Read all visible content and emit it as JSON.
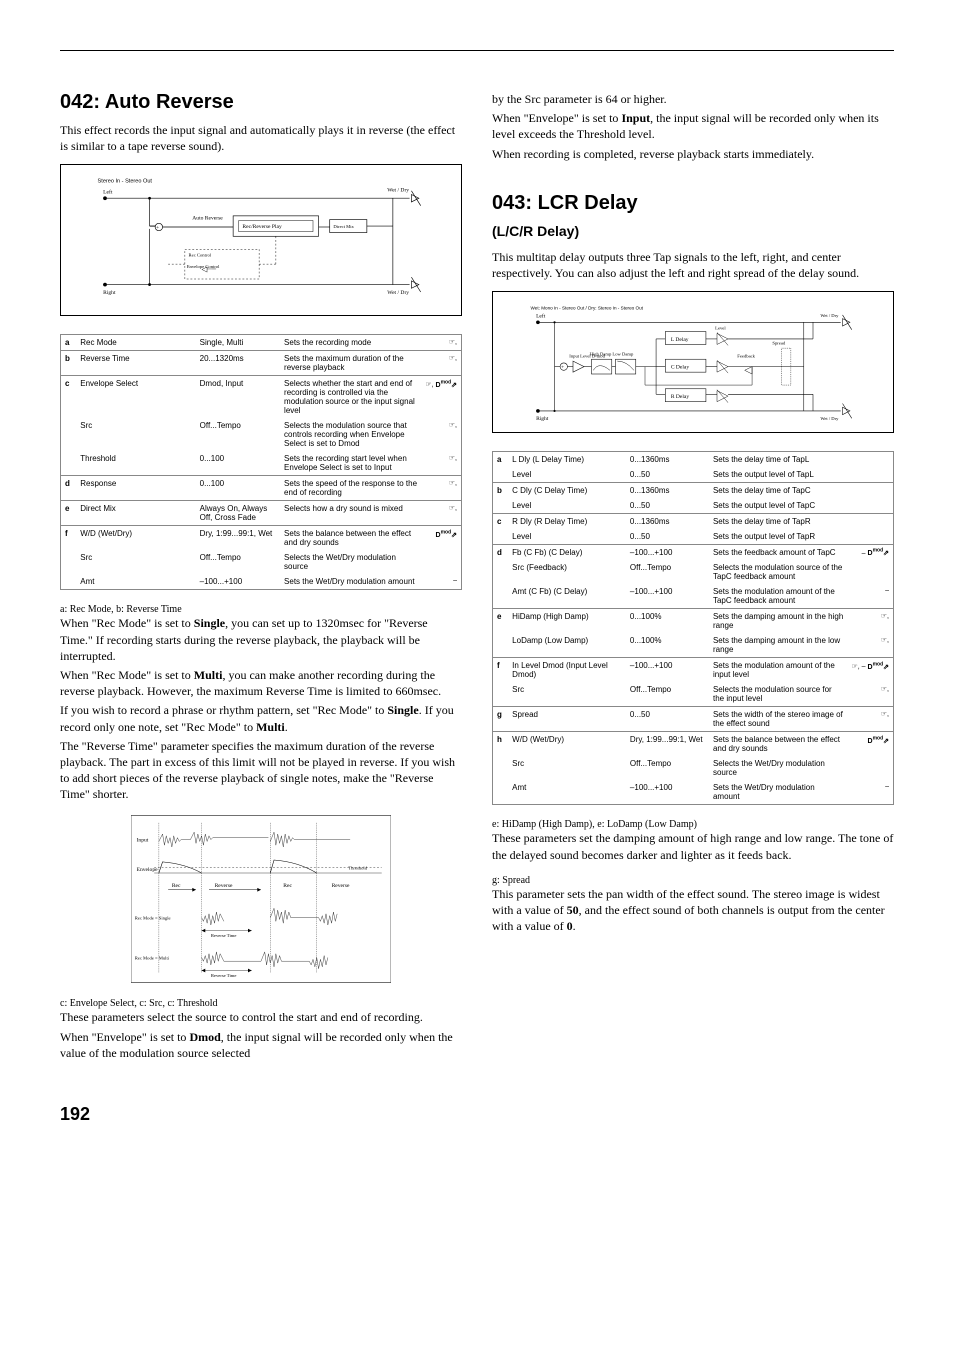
{
  "page_number": "192",
  "left": {
    "section_title": "042: Auto Reverse",
    "intro": "This effect records the input signal and automatically plays it in reverse (the effect is similar to a tape reverse sound).",
    "diagram": {
      "title": "Stereo In - Stereo Out",
      "labels": [
        "Left",
        "Right",
        "Wet / Dry",
        "Wet / Dry",
        "Rec/Reverse Play",
        "Rec Control",
        "Auto Reverse",
        "Envelope Control",
        "Direct Mix"
      ]
    },
    "params": [
      {
        "letter": "a",
        "rows": [
          {
            "name": "Rec Mode",
            "range": "Single, Multi",
            "desc": "Sets the recording mode",
            "icon": "☞,"
          }
        ]
      },
      {
        "letter": "b",
        "rows": [
          {
            "name": "Reverse Time",
            "range": "20...1320ms",
            "desc": "Sets the maximum duration of the reverse playback",
            "icon": "☞,"
          }
        ]
      },
      {
        "letter": "c",
        "rows": [
          {
            "name": "Envelope Select",
            "range": "Dmod, Input",
            "desc": "Selects whether the start and end of recording is controlled via the modulation source or the input signal level",
            "icon": "☞, D-mod"
          },
          {
            "name": "Src",
            "range": "Off...Tempo",
            "desc": "Selects the modulation source that controls recording when Envelope Select is set to Dmod",
            "icon": "☞,"
          },
          {
            "name": "Threshold",
            "range": "0...100",
            "desc": "Sets the recording start level when Envelope Select is set to Input",
            "icon": "☞,"
          }
        ]
      },
      {
        "letter": "d",
        "rows": [
          {
            "name": "Response",
            "range": "0...100",
            "desc": "Sets the speed of the response to the end of recording",
            "icon": "☞,"
          }
        ]
      },
      {
        "letter": "e",
        "rows": [
          {
            "name": "Direct Mix",
            "range": "Always On, Always Off, Cross Fade",
            "desc": "Selects how a dry sound is mixed",
            "icon": "☞,"
          }
        ]
      },
      {
        "letter": "f",
        "rows": [
          {
            "name": "W/D (Wet/Dry)",
            "range": "Dry, 1:99...99:1, Wet",
            "desc": "Sets the balance between the effect and dry sounds",
            "icon": "D-mod"
          },
          {
            "name": "Src",
            "range": "Off...Tempo",
            "desc": "Selects the Wet/Dry modulation source",
            "icon": ""
          },
          {
            "name": "Amt",
            "range": "–100...+100",
            "desc": "Sets the Wet/Dry modulation amount",
            "icon": "–"
          }
        ]
      }
    ],
    "note_a_title": "a: Rec Mode, b: Reverse Time",
    "note_a_p1a": "When \"Rec Mode\" is set to ",
    "note_a_p1b": "Single",
    "note_a_p1c": ", you can set up to 1320msec for \"Reverse Time.\" If recording starts during the reverse playback, the playback will be interrupted.",
    "note_a_p2a": "When \"Rec Mode\" is set to ",
    "note_a_p2b": "Multi",
    "note_a_p2c": ", you can make another recording during the reverse playback. However, the maximum Reverse Time is limited to 660msec.",
    "note_a_p3a": "If you wish to record a phrase or rhythm pattern, set \"Rec Mode\" to ",
    "note_a_p3b": "Single",
    "note_a_p3c": ". If you record only one note, set \"Rec Mode\" to ",
    "note_a_p3d": "Multi",
    "note_a_p3e": ".",
    "note_a_p4": "The \"Reverse Time\" parameter specifies the maximum duration of the reverse playback. The part in excess of this limit will not be played in reverse. If you wish to add short pieces of the reverse playback of single notes, make the \"Reverse Time\" shorter.",
    "env_diagram": {
      "labels": [
        "Rec Mode = Single",
        "Rec Mode = Multi",
        "Envelope",
        "Threshold",
        "Input",
        "Reverse Time",
        "Rec",
        "Reverse"
      ]
    },
    "note_c_title": "c: Envelope Select, c: Src, c: Threshold",
    "note_c_p1": "These parameters select the source to control the start and end of recording.",
    "note_c_p2a": "When \"Envelope\" is set to ",
    "note_c_p2b": "Dmod",
    "note_c_p2c": ", the input signal will be recorded only when the value of the modulation source selected"
  },
  "right": {
    "cont_p1": "by the Src parameter is 64 or higher.",
    "cont_p2a": "When \"Envelope\" is set to ",
    "cont_p2b": "Input",
    "cont_p2c": ", the input signal will be recorded only when its level exceeds the Threshold level.",
    "cont_p3": "When recording is completed, reverse playback starts immediately.",
    "section_title": "043: LCR Delay",
    "subtitle": "(L/C/R Delay)",
    "intro": "This multitap delay outputs three Tap signals to the left, right, and center respectively. You can also adjust the left and right spread of the delay sound.",
    "diagram": {
      "title": "Wet: Mono In - Stereo Out / Dry: Stereo In - Stereo Out",
      "labels": [
        "Left",
        "Right",
        "Wet / Dry",
        "Input Level D-mod",
        "High Damp",
        "Low Damp",
        "L Delay",
        "C Delay",
        "R Delay",
        "Feedback",
        "Spread",
        "Level"
      ]
    },
    "params": [
      {
        "letter": "a",
        "rows": [
          {
            "name": "L Dly (L Delay Time)",
            "range": "0...1360ms",
            "desc": "Sets the delay time of TapL",
            "icon": ""
          },
          {
            "name": "Level",
            "range": "0...50",
            "desc": "Sets the output level of TapL",
            "icon": ""
          }
        ]
      },
      {
        "letter": "b",
        "rows": [
          {
            "name": "C Dly (C Delay Time)",
            "range": "0...1360ms",
            "desc": "Sets the delay time of TapC",
            "icon": ""
          },
          {
            "name": "Level",
            "range": "0...50",
            "desc": "Sets the output level of TapC",
            "icon": ""
          }
        ]
      },
      {
        "letter": "c",
        "rows": [
          {
            "name": "R Dly (R Delay Time)",
            "range": "0...1360ms",
            "desc": "Sets the delay time of TapR",
            "icon": ""
          },
          {
            "name": "Level",
            "range": "0...50",
            "desc": "Sets the output level of TapR",
            "icon": ""
          }
        ]
      },
      {
        "letter": "d",
        "rows": [
          {
            "name": "Fb (C Fb) (C Delay)",
            "range": "–100...+100",
            "desc": "Sets the feedback amount of TapC",
            "icon": "– D-mod"
          },
          {
            "name": "Src (Feedback)",
            "range": "Off...Tempo",
            "desc": "Selects the modulation source of the TapC feedback amount",
            "icon": ""
          },
          {
            "name": "Amt (C Fb) (C Delay)",
            "range": "–100...+100",
            "desc": "Sets the modulation amount of the TapC feedback amount",
            "icon": "–"
          }
        ]
      },
      {
        "letter": "e",
        "rows": [
          {
            "name": "HiDamp (High Damp)",
            "range": "0...100%",
            "desc": "Sets the damping amount in the high range",
            "icon": "☞,"
          },
          {
            "name": "LoDamp (Low Damp)",
            "range": "0...100%",
            "desc": "Sets the damping amount in the low range",
            "icon": "☞,"
          }
        ]
      },
      {
        "letter": "f",
        "rows": [
          {
            "name": "In Level Dmod (Input Level Dmod)",
            "range": "–100...+100",
            "desc": "Sets the modulation amount of the input level",
            "icon": "☞, – D-mod"
          },
          {
            "name": "Src",
            "range": "Off...Tempo",
            "desc": "Selects the modulation source for the input level",
            "icon": "☞,"
          }
        ]
      },
      {
        "letter": "g",
        "rows": [
          {
            "name": "Spread",
            "range": "0...50",
            "desc": "Sets the width of the stereo image of the effect sound",
            "icon": "☞,"
          }
        ]
      },
      {
        "letter": "h",
        "rows": [
          {
            "name": "W/D (Wet/Dry)",
            "range": "Dry, 1:99...99:1, Wet",
            "desc": "Sets the balance between the effect and dry sounds",
            "icon": "D-mod"
          },
          {
            "name": "Src",
            "range": "Off...Tempo",
            "desc": "Selects the Wet/Dry modulation source",
            "icon": ""
          },
          {
            "name": "Amt",
            "range": "–100...+100",
            "desc": "Sets the Wet/Dry modulation amount",
            "icon": "–"
          }
        ]
      }
    ],
    "note_e_title": "e: HiDamp (High Damp), e: LoDamp (Low Damp)",
    "note_e_p1": "These parameters set the damping amount of high range and low range. The tone of the delayed sound becomes darker and lighter as it feeds back.",
    "note_g_title": "g: Spread",
    "note_g_p1a": "This parameter sets the pan width of the effect sound. The stereo image is widest with a value of ",
    "note_g_p1b": "50",
    "note_g_p1c": ", and the effect sound of both channels is output from the center with a value of ",
    "note_g_p1d": "0",
    "note_g_p1e": "."
  }
}
